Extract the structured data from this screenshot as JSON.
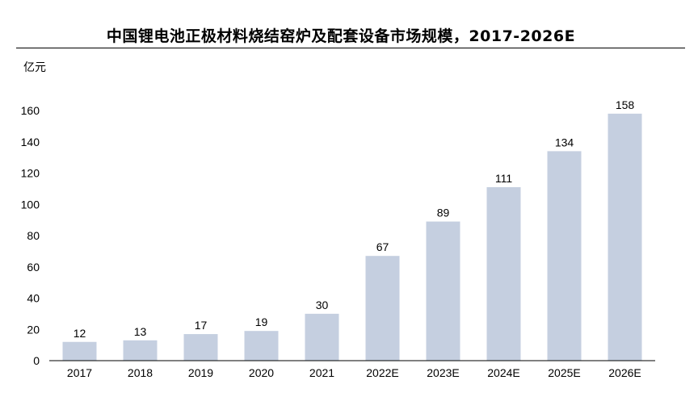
{
  "chart_data": {
    "type": "bar",
    "title": "中国锂电池正极材料烧结窑炉及配套设备市场规模，2017-2026E",
    "ylabel": "亿元",
    "xlabel": "",
    "categories": [
      "2017",
      "2018",
      "2019",
      "2020",
      "2021",
      "2022E",
      "2023E",
      "2024E",
      "2025E",
      "2026E"
    ],
    "values": [
      12,
      13,
      17,
      19,
      30,
      67,
      89,
      111,
      134,
      158
    ],
    "data_labels": [
      "12",
      "13",
      "17",
      "19",
      "30",
      "67",
      "89",
      "111",
      "134",
      "158"
    ],
    "yticks": [
      0,
      20,
      40,
      60,
      80,
      100,
      120,
      140,
      160
    ],
    "ylim": [
      0,
      160
    ],
    "grid": false,
    "legend": "none",
    "bar_color": "#c5cfe0"
  }
}
